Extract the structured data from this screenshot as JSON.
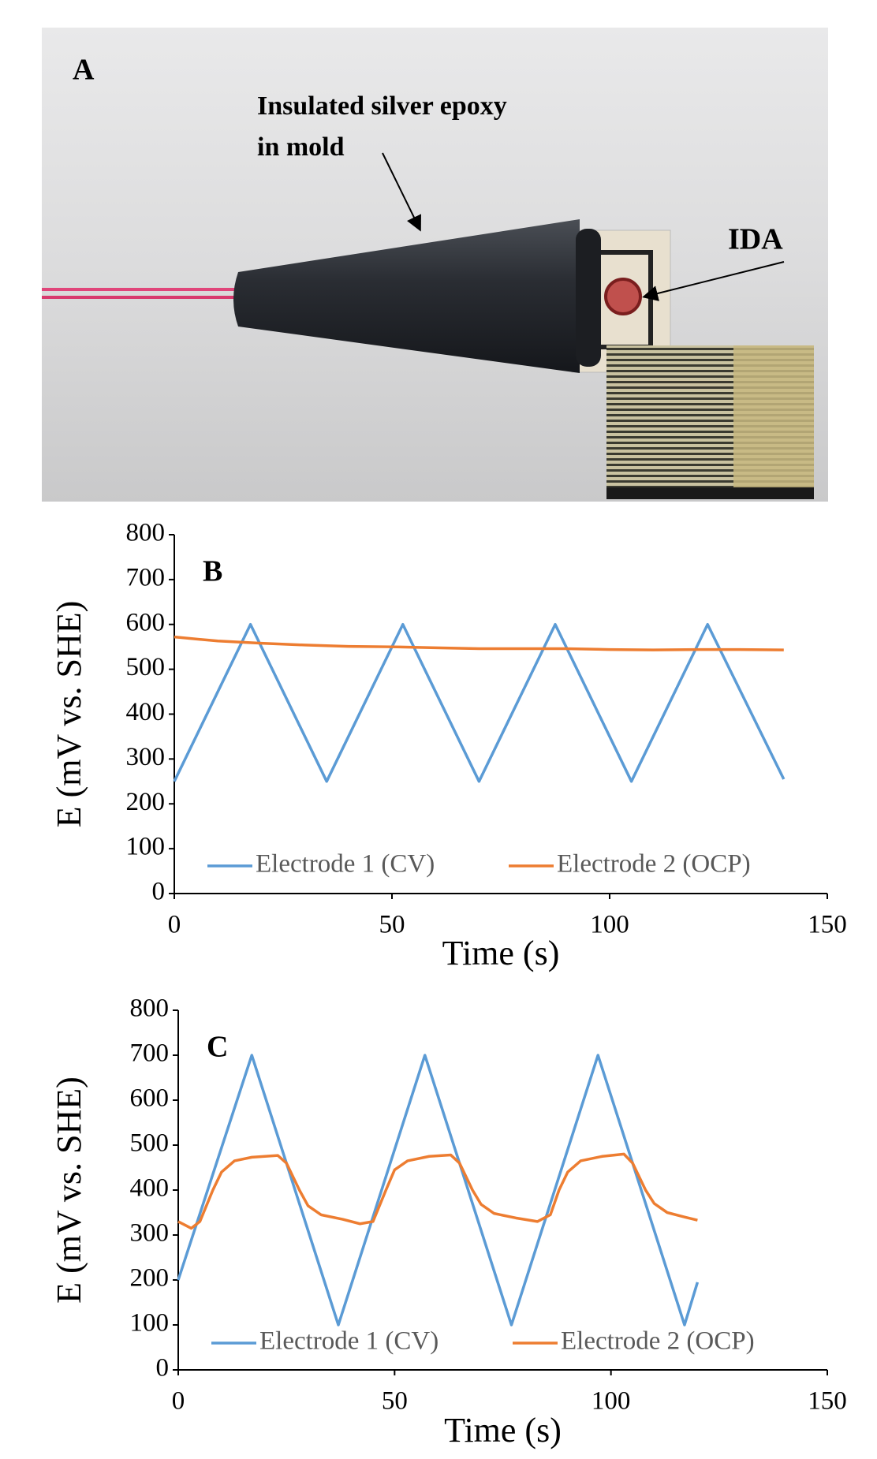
{
  "photo": {
    "panel": "A",
    "label_lines": [
      "Insulated silver epoxy",
      "in mold"
    ],
    "ida_label": "IDA"
  },
  "chart_data": [
    {
      "type": "line",
      "annotation": "B",
      "x_label": "Time (s)",
      "y_label": "E (mV vs. SHE)",
      "xlim": [
        0,
        150
      ],
      "xticks": [
        0,
        50,
        100,
        150
      ],
      "ylim": [
        0,
        800
      ],
      "yticks": [
        0,
        100,
        200,
        300,
        400,
        500,
        600,
        700,
        800
      ],
      "grid": false,
      "legend": "bottom",
      "series": [
        {
          "name": "Electrode 1 (CV)",
          "color": "#5b9bd5",
          "x": [
            0,
            17.5,
            35,
            52.5,
            70,
            87.5,
            105,
            122.5,
            140
          ],
          "values": [
            250,
            600,
            250,
            600,
            250,
            600,
            250,
            600,
            255
          ]
        },
        {
          "name": "Electrode 2 (OCP)",
          "color": "#ed7d31",
          "x": [
            0,
            10,
            20,
            30,
            40,
            50,
            60,
            70,
            80,
            90,
            100,
            110,
            120,
            130,
            140
          ],
          "values": [
            572,
            563,
            558,
            554,
            551,
            550,
            548,
            546,
            546,
            546,
            544,
            543,
            544,
            544,
            543
          ]
        }
      ]
    },
    {
      "type": "line",
      "annotation": "C",
      "x_label": "Time (s)",
      "y_label": "E (mV vs. SHE)",
      "xlim": [
        0,
        150
      ],
      "xticks": [
        0,
        50,
        100,
        150
      ],
      "ylim": [
        0,
        800
      ],
      "yticks": [
        0,
        100,
        200,
        300,
        400,
        500,
        600,
        700,
        800
      ],
      "grid": false,
      "legend": "bottom",
      "series": [
        {
          "name": "Electrode 1 (CV)",
          "color": "#5b9bd5",
          "x": [
            0,
            17,
            37,
            57,
            77,
            97,
            117,
            120
          ],
          "values": [
            200,
            700,
            100,
            700,
            100,
            700,
            100,
            195
          ]
        },
        {
          "name": "Electrode 2 (OCP)",
          "color": "#ed7d31",
          "x": [
            0,
            3,
            5,
            8,
            10,
            13,
            17,
            23,
            25,
            28,
            30,
            33,
            38,
            42,
            45,
            48,
            50,
            53,
            58,
            63,
            65,
            68,
            70,
            73,
            78,
            83,
            86,
            88,
            90,
            93,
            98,
            103,
            105,
            108,
            110,
            113,
            117,
            120
          ],
          "values": [
            330,
            315,
            330,
            400,
            440,
            465,
            473,
            477,
            460,
            400,
            365,
            345,
            335,
            325,
            330,
            400,
            445,
            465,
            475,
            478,
            460,
            400,
            368,
            348,
            338,
            330,
            345,
            400,
            440,
            465,
            475,
            480,
            460,
            400,
            370,
            350,
            340,
            333
          ]
        }
      ]
    }
  ]
}
